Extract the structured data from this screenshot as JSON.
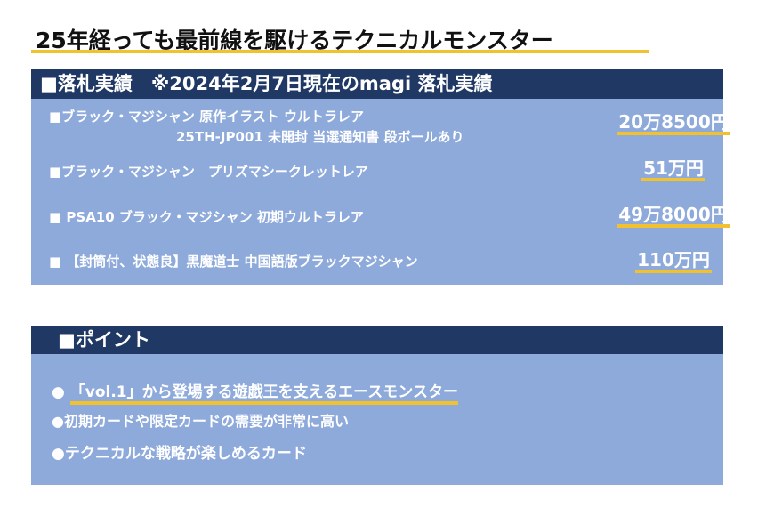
{
  "title": "25年経っても最前線を駆けるテクニカルモンスター",
  "accent_color": "#f2c12e",
  "header_color": "#1f3864",
  "panel_color": "#8eaadb",
  "results": {
    "header": "■落札実績　※2024年2月7日現在のmagi 落札実績",
    "items": [
      {
        "line1": "■ブラック・マジシャン 原作イラスト ウルトラレア",
        "line2": "25TH-JP001 未開封 当選通知書 段ボールあり",
        "price": "20万8500円"
      },
      {
        "line1": "■ブラック・マジシャン　プリズマシークレットレア",
        "price": "51万円"
      },
      {
        "line1": "■ PSA10 ブラック・マジシャン 初期ウルトラレア",
        "price": "49万8000円"
      },
      {
        "line1": "■ 【封筒付、状態良】黒魔道士 中国語版ブラックマジシャン",
        "price": "110万円"
      }
    ]
  },
  "points": {
    "header": "■ポイント",
    "items": [
      {
        "bullet": "●",
        "text": "「vol.1」から登場する遊戯王を支えるエースモンスター"
      },
      {
        "bullet": "●",
        "text": "初期カードや限定カードの需要が非常に高い"
      },
      {
        "bullet": "●",
        "text": "テクニカルな戦略が楽しめるカード"
      }
    ]
  }
}
